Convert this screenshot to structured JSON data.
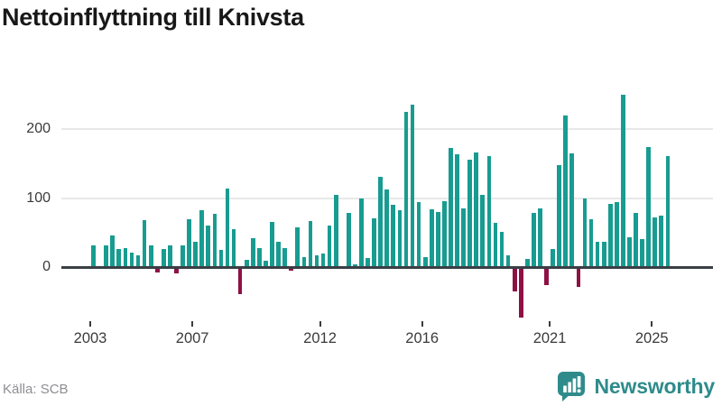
{
  "title": "Nettoinflyttning till Knivsta",
  "source": "Källa: SCB",
  "logo": {
    "text": "Newsworthy"
  },
  "colors": {
    "bar": "#189c91",
    "negative": "#8e1144",
    "zero_line": "#3a3f45",
    "gridline": "#e8e8e8",
    "axis_text": "#3b3b3b",
    "source_text": "#8e8e93",
    "logo_teal": "#2f8b8b"
  },
  "chart_data": {
    "type": "bar",
    "title": "Nettoinflyttning till Knivsta",
    "grid": "horizontal",
    "legend": "none",
    "y_ticks": [
      0,
      100,
      200
    ],
    "ylim": [
      -80,
      260
    ],
    "x_tick_years": [
      2003,
      2007,
      2012,
      2016,
      2021,
      2025
    ],
    "categories": [
      "2003Q1",
      "2003Q2",
      "2003Q3",
      "2003Q4",
      "2004Q1",
      "2004Q2",
      "2004Q3",
      "2004Q4",
      "2005Q1",
      "2005Q2",
      "2005Q3",
      "2005Q4",
      "2006Q1",
      "2006Q2",
      "2006Q3",
      "2006Q4",
      "2007Q1",
      "2007Q2",
      "2007Q3",
      "2007Q4",
      "2008Q1",
      "2008Q2",
      "2008Q3",
      "2008Q4",
      "2009Q1",
      "2009Q2",
      "2009Q3",
      "2009Q4",
      "2010Q1",
      "2010Q2",
      "2010Q3",
      "2010Q4",
      "2011Q1",
      "2011Q2",
      "2011Q3",
      "2011Q4",
      "2012Q1",
      "2012Q2",
      "2012Q3",
      "2012Q4",
      "2013Q1",
      "2013Q2",
      "2013Q3",
      "2013Q4",
      "2014Q1",
      "2014Q2",
      "2014Q3",
      "2014Q4",
      "2015Q1",
      "2015Q2",
      "2015Q3",
      "2015Q4",
      "2016Q1",
      "2016Q2",
      "2016Q3",
      "2016Q4",
      "2017Q1",
      "2017Q2",
      "2017Q3",
      "2017Q4",
      "2018Q1",
      "2018Q2",
      "2018Q3",
      "2018Q4",
      "2019Q1",
      "2019Q2",
      "2019Q3",
      "2019Q4",
      "2020Q1",
      "2020Q2",
      "2020Q3",
      "2020Q4",
      "2021Q1",
      "2021Q2",
      "2021Q3",
      "2021Q4",
      "2022Q1",
      "2022Q2",
      "2022Q3",
      "2022Q4",
      "2023Q1",
      "2023Q2",
      "2023Q3",
      "2023Q4",
      "2024Q1",
      "2024Q2",
      "2024Q3",
      "2024Q4",
      "2025Q1",
      "2025Q2",
      "2025Q3"
    ],
    "values": [
      32,
      0,
      31,
      46,
      26,
      28,
      21,
      17,
      68,
      32,
      -7,
      26,
      31,
      -9,
      31,
      69,
      36,
      82,
      60,
      77,
      25,
      114,
      55,
      -39,
      10,
      42,
      28,
      9,
      66,
      36,
      28,
      -4,
      57,
      15,
      67,
      17,
      20,
      60,
      104,
      0,
      79,
      4,
      100,
      13,
      71,
      131,
      113,
      90,
      82,
      225,
      235,
      94,
      15,
      84,
      80,
      95,
      172,
      164,
      85,
      155,
      166,
      105,
      161,
      64,
      51,
      17,
      -34,
      -73,
      12,
      78,
      85,
      -25,
      26,
      148,
      220,
      165,
      -28,
      100,
      69,
      36,
      36,
      91,
      94,
      250,
      43,
      78,
      41,
      174,
      72,
      75,
      161
    ]
  }
}
